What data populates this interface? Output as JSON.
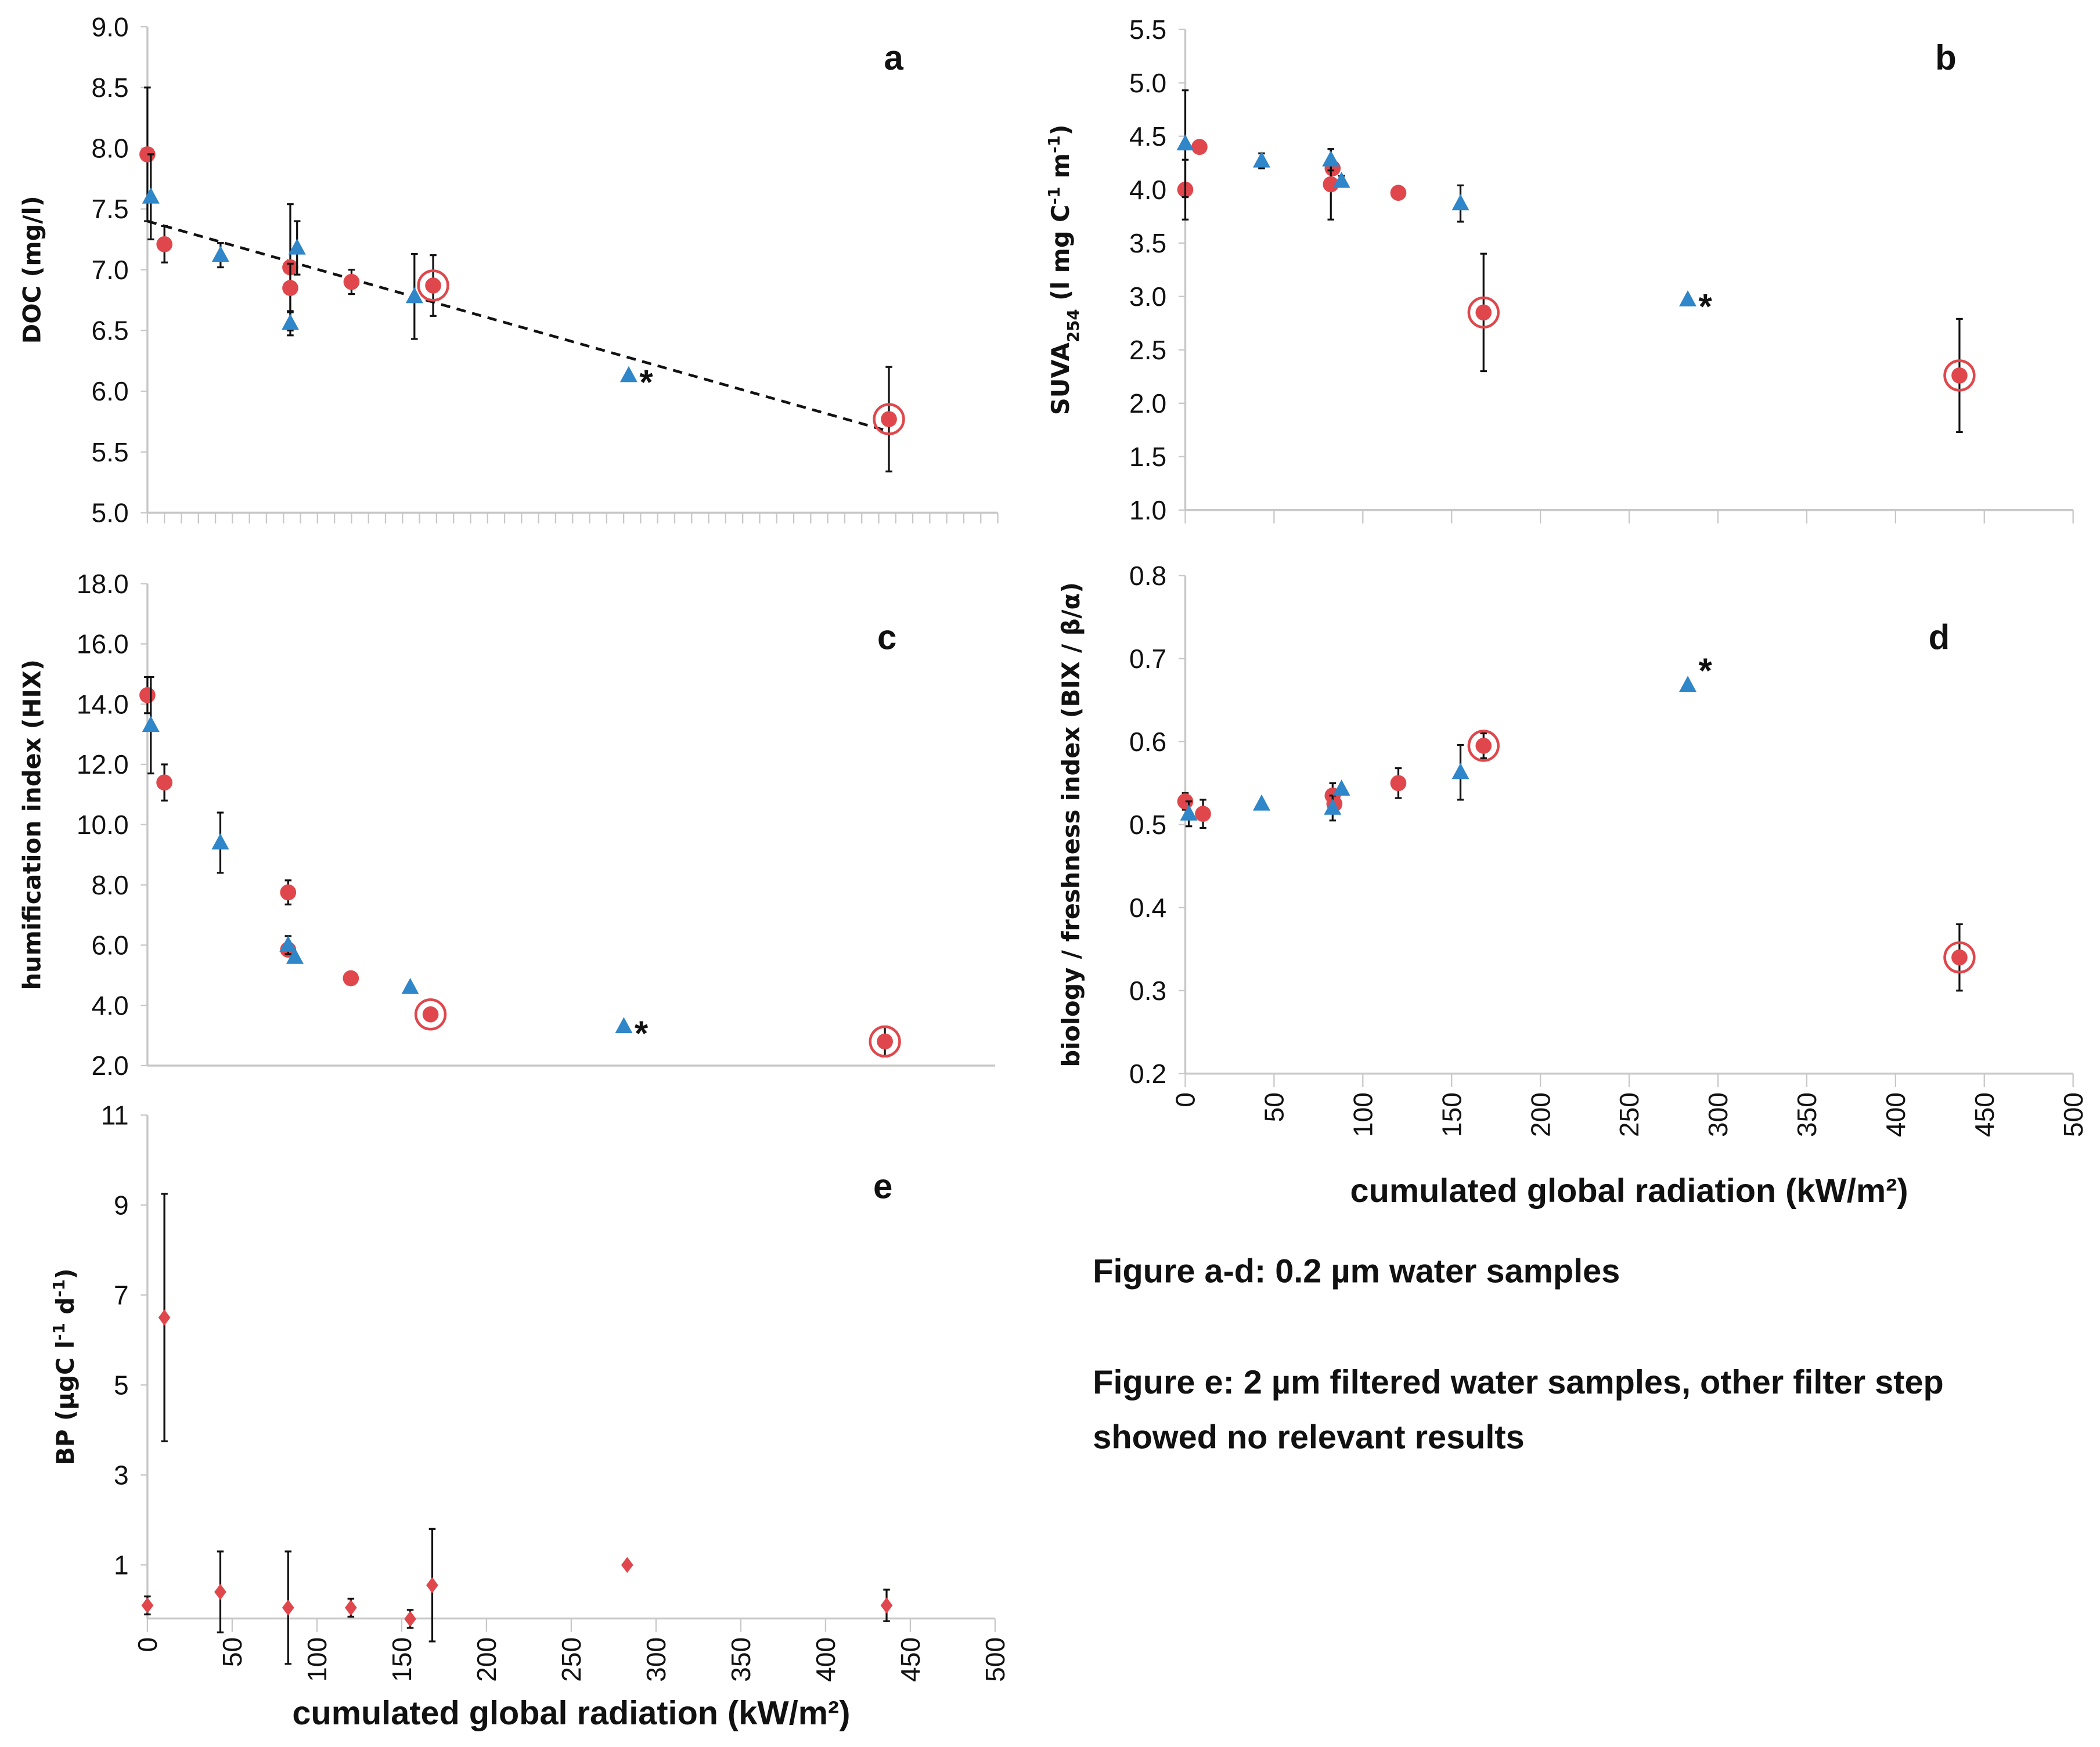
{
  "colors": {
    "red": "#e0474c",
    "blue": "#2f86c8",
    "axis": "#c8c8c8",
    "err": "#111111"
  },
  "notes": {
    "line1": "Figure a-d: 0.2 µm water samples",
    "line2": "Figure e: 2 µm filtered water samples, other filter step",
    "line3": "showed no relevant results"
  },
  "chart_data": [
    {
      "id": "a",
      "type": "scatter",
      "panel_label": "a",
      "ylabel": "DOC (mg/l)",
      "xlabel": "",
      "xlim": [
        0,
        500
      ],
      "ylim": [
        5.0,
        9.0
      ],
      "yticks": [
        "5.0",
        "5.5",
        "6.0",
        "6.5",
        "7.0",
        "7.5",
        "8.0",
        "8.5",
        "9.0"
      ],
      "xticks": [],
      "trendline": {
        "x": [
          0,
          436
        ],
        "y": [
          7.4,
          5.67
        ],
        "style": "dashed"
      },
      "series": [
        {
          "name": "circles",
          "marker": "circle",
          "color": "red",
          "points": [
            {
              "x": 0,
              "y": 7.95,
              "err": 0.55
            },
            {
              "x": 10,
              "y": 7.21,
              "err": 0.15
            },
            {
              "x": 84,
              "y": 7.02,
              "err": 0.52
            },
            {
              "x": 84,
              "y": 6.85,
              "err": 0.2
            },
            {
              "x": 120,
              "y": 6.9,
              "err": 0.1
            },
            {
              "x": 168,
              "y": 6.87,
              "err": 0.25,
              "highlight": true
            },
            {
              "x": 436,
              "y": 5.77,
              "err": 0.43,
              "highlight": true
            }
          ]
        },
        {
          "name": "triangles",
          "marker": "triangle",
          "color": "blue",
          "points": [
            {
              "x": 2,
              "y": 7.6,
              "err": 0.35
            },
            {
              "x": 43,
              "y": 7.12,
              "err": 0.1
            },
            {
              "x": 84,
              "y": 6.56,
              "err": 0.1
            },
            {
              "x": 88,
              "y": 7.18,
              "err": 0.22
            },
            {
              "x": 157,
              "y": 6.78,
              "err": 0.35
            },
            {
              "x": 283,
              "y": 6.13,
              "err": 0,
              "annotation": "*"
            }
          ]
        }
      ]
    },
    {
      "id": "b",
      "type": "scatter",
      "panel_label": "b",
      "ylabel": "SUVA",
      "ylabel_sub": "254",
      "ylabel_rest": " (l mg C",
      "ylabel_sup1": "-1",
      "ylabel_mid": " m",
      "ylabel_sup2": "-1",
      "ylabel_end": ")",
      "xlabel": "",
      "xlim": [
        0,
        500
      ],
      "ylim": [
        1.0,
        5.5
      ],
      "yticks": [
        "1.0",
        "1.5",
        "2.0",
        "2.5",
        "3.0",
        "3.5",
        "4.0",
        "4.5",
        "5.0",
        "5.5"
      ],
      "xticks": [],
      "series": [
        {
          "name": "circles",
          "marker": "circle",
          "color": "red",
          "points": [
            {
              "x": 0,
              "y": 4.0,
              "err": 0.28
            },
            {
              "x": 8,
              "y": 4.4,
              "err": 0.05
            },
            {
              "x": 83,
              "y": 4.2,
              "err": 0
            },
            {
              "x": 82,
              "y": 4.05,
              "err": 0.33
            },
            {
              "x": 120,
              "y": 3.97,
              "err": 0.05
            },
            {
              "x": 168,
              "y": 2.85,
              "err": 0.55,
              "highlight": true
            },
            {
              "x": 436,
              "y": 2.26,
              "err": 0.53,
              "highlight": true
            }
          ]
        },
        {
          "name": "triangles",
          "marker": "triangle",
          "color": "blue",
          "points": [
            {
              "x": 0,
              "y": 4.43,
              "err": 0.5
            },
            {
              "x": 43,
              "y": 4.27,
              "err": 0.07
            },
            {
              "x": 82,
              "y": 4.28,
              "err": 0.1
            },
            {
              "x": 88,
              "y": 4.08,
              "err": 0.05
            },
            {
              "x": 155,
              "y": 3.87,
              "err": 0.17
            },
            {
              "x": 283,
              "y": 2.97,
              "err": 0,
              "annotation": "*"
            }
          ]
        }
      ]
    },
    {
      "id": "c",
      "type": "scatter",
      "panel_label": "c",
      "ylabel": "humification index (HIX)",
      "xlabel": "",
      "xlim": [
        0,
        500
      ],
      "ylim": [
        2.0,
        18.0
      ],
      "yticks": [
        "2.0",
        "4.0",
        "6.0",
        "8.0",
        "10.0",
        "12.0",
        "14.0",
        "16.0",
        "18.0"
      ],
      "xticks": [],
      "series": [
        {
          "name": "circles",
          "marker": "circle",
          "color": "red",
          "points": [
            {
              "x": 0,
              "y": 14.3,
              "err": 0.6
            },
            {
              "x": 10,
              "y": 11.4,
              "err": 0.6
            },
            {
              "x": 83,
              "y": 7.75,
              "err": 0.4
            },
            {
              "x": 83,
              "y": 5.85,
              "err": 0
            },
            {
              "x": 120,
              "y": 4.9,
              "err": 0
            },
            {
              "x": 167,
              "y": 3.7,
              "err": 0.2,
              "highlight": true
            },
            {
              "x": 435,
              "y": 2.8,
              "err": 0.5,
              "highlight": true
            }
          ]
        },
        {
          "name": "triangles",
          "marker": "triangle",
          "color": "blue",
          "points": [
            {
              "x": 2,
              "y": 13.3,
              "err": 1.6
            },
            {
              "x": 43,
              "y": 9.4,
              "err": 1.0
            },
            {
              "x": 83,
              "y": 6.0,
              "err": 0.3
            },
            {
              "x": 87,
              "y": 5.6,
              "err": 0
            },
            {
              "x": 155,
              "y": 4.6,
              "err": 0
            },
            {
              "x": 281,
              "y": 3.3,
              "err": 0,
              "annotation": "*"
            }
          ]
        }
      ]
    },
    {
      "id": "d",
      "type": "scatter",
      "panel_label": "d",
      "ylabel": "biology / freshness index (BIX / β/α)",
      "xlabel": "cumulated global radiation (kW/m²)",
      "xlim": [
        0,
        500
      ],
      "ylim": [
        0.2,
        0.8
      ],
      "yticks": [
        "0.2",
        "0.3",
        "0.4",
        "0.5",
        "0.6",
        "0.7",
        "0.8"
      ],
      "xticks": [
        "0",
        "50",
        "100",
        "150",
        "200",
        "250",
        "300",
        "350",
        "400",
        "450",
        "500"
      ],
      "series": [
        {
          "name": "circles",
          "marker": "circle",
          "color": "red",
          "points": [
            {
              "x": 0,
              "y": 0.528,
              "err": 0.01
            },
            {
              "x": 10,
              "y": 0.513,
              "err": 0.017
            },
            {
              "x": 83,
              "y": 0.535,
              "err": 0.015
            },
            {
              "x": 84,
              "y": 0.525,
              "err": 0
            },
            {
              "x": 120,
              "y": 0.55,
              "err": 0.018
            },
            {
              "x": 168,
              "y": 0.595,
              "err": 0.015,
              "highlight": true
            },
            {
              "x": 436,
              "y": 0.34,
              "err": 0.04,
              "highlight": true
            }
          ]
        },
        {
          "name": "triangles",
          "marker": "triangle",
          "color": "blue",
          "points": [
            {
              "x": 2,
              "y": 0.513,
              "err": 0.015
            },
            {
              "x": 43,
              "y": 0.525,
              "err": 0
            },
            {
              "x": 83,
              "y": 0.52,
              "err": 0.015
            },
            {
              "x": 88,
              "y": 0.543,
              "err": 0
            },
            {
              "x": 155,
              "y": 0.563,
              "err": 0.033
            },
            {
              "x": 283,
              "y": 0.668,
              "err": 0,
              "annotation": "*"
            }
          ]
        }
      ]
    },
    {
      "id": "e",
      "type": "scatter",
      "panel_label": "e",
      "ylabel": "BP (µgC l",
      "ylabel_sup1": "-1",
      "ylabel_mid": " d",
      "ylabel_sup2": "-1",
      "ylabel_end": ")",
      "xlabel": "cumulated global radiation (kW/m²)",
      "xlim": [
        0,
        500
      ],
      "ylim": [
        -0.15,
        11
      ],
      "yticks": [
        "1",
        "3",
        "5",
        "7",
        "9",
        "11"
      ],
      "xticks": [
        "0",
        "50",
        "100",
        "150",
        "200",
        "250",
        "300",
        "350",
        "400",
        "450",
        "500"
      ],
      "series": [
        {
          "name": "diamonds",
          "marker": "diamond",
          "color": "red",
          "points": [
            {
              "x": 0,
              "y": 0.1,
              "err": 0.2
            },
            {
              "x": 10,
              "y": 6.5,
              "err": 2.75
            },
            {
              "x": 43,
              "y": 0.4,
              "err": 0.9
            },
            {
              "x": 83,
              "y": 0.05,
              "err": 1.25
            },
            {
              "x": 120,
              "y": 0.05,
              "err": 0.2
            },
            {
              "x": 155,
              "y": -0.2,
              "err": 0.2
            },
            {
              "x": 168,
              "y": 0.55,
              "err": 1.25
            },
            {
              "x": 283,
              "y": 1.0,
              "err": 0
            },
            {
              "x": 436,
              "y": 0.1,
              "err": 0.35
            }
          ]
        }
      ]
    }
  ]
}
